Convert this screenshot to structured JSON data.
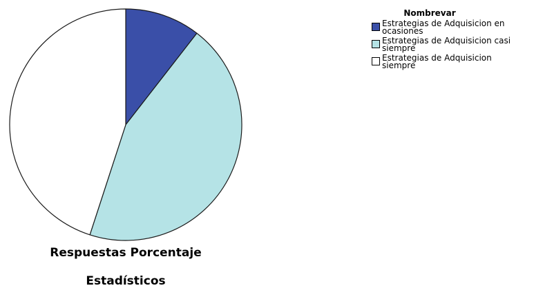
{
  "chart_data": {
    "type": "pie",
    "categories": [
      "Estrategias de Adquisicion en ocasiones",
      "Estrategias de Adquisicion casi siempre",
      "Estrategias de Adquisicion siempre"
    ],
    "values": [
      10.5,
      44.5,
      45.0
    ],
    "colors": [
      "#3a4fa8",
      "#b5e3e6",
      "#ffffff"
    ],
    "start_angle_deg": 0,
    "direction": "clockwise",
    "legend_title": "Nombrevar",
    "legend_position": "top-right",
    "captions": [
      "Respuestas Porcentaje",
      "Estadísticos"
    ]
  }
}
